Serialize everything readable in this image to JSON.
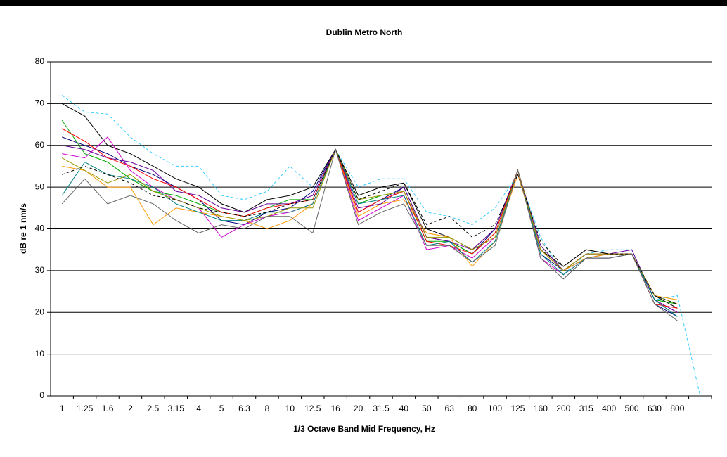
{
  "chart_data": {
    "type": "line",
    "title": "Dublin Metro North",
    "x_label": "1/3 Octave Band Mid Frequency, Hz",
    "y_label": "dB re 1 nm/s",
    "categories": [
      "1",
      "1.25",
      "1.6",
      "2",
      "2.5",
      "3.15",
      "4",
      "5",
      "6.3",
      "8",
      "10",
      "12.5",
      "16",
      "20",
      "31.5",
      "40",
      "50",
      "63",
      "80",
      "100",
      "125",
      "160",
      "200",
      "315",
      "400",
      "500",
      "630",
      "800",
      null
    ],
    "ylim": [
      0,
      80
    ],
    "yticks": [
      0,
      10,
      20,
      30,
      40,
      50,
      60,
      70,
      80
    ],
    "grid": true,
    "series": [
      {
        "color": "#33ccff",
        "dashed": true,
        "values": [
          72,
          68,
          67.5,
          62,
          58,
          55,
          55,
          48,
          47,
          49,
          55,
          50,
          59,
          50,
          52,
          52,
          44,
          43,
          41,
          45,
          53,
          38,
          29,
          34,
          35,
          35,
          23,
          24,
          0
        ]
      },
      {
        "color": "#000000",
        "values": [
          70,
          67,
          60,
          58,
          55,
          52,
          50,
          46,
          44,
          47,
          48,
          50,
          59,
          48,
          50,
          51,
          40,
          38,
          35,
          40,
          54,
          35,
          31,
          35,
          34,
          34,
          24,
          21,
          null
        ]
      },
      {
        "color": "#000080",
        "values": [
          62,
          60,
          58,
          55,
          53,
          50,
          47,
          42,
          41,
          44,
          45,
          49,
          59,
          44,
          47,
          50,
          38,
          37,
          34,
          40,
          54,
          34,
          30,
          33,
          34,
          34,
          22,
          19,
          null
        ]
      },
      {
        "color": "#cc00cc",
        "values": [
          58,
          57,
          62,
          54,
          50,
          47,
          45,
          38,
          41,
          43,
          44,
          46,
          59,
          42,
          45,
          48,
          35,
          36,
          33,
          38,
          54,
          33,
          29,
          33,
          33,
          34,
          23,
          20,
          null
        ]
      },
      {
        "color": "#00aa00",
        "values": [
          66,
          58,
          56,
          52,
          49,
          48,
          46,
          44,
          43,
          45,
          47,
          47,
          59,
          46,
          48,
          49,
          37,
          37,
          34,
          39,
          54,
          36,
          30,
          34,
          34,
          34,
          23,
          22,
          null
        ]
      },
      {
        "color": "#ff9900",
        "values": [
          55,
          54,
          50,
          50,
          41,
          45,
          44,
          43,
          42,
          40,
          42,
          46,
          59,
          43,
          46,
          47,
          39,
          38,
          31,
          37,
          53,
          35,
          30,
          33,
          34,
          34,
          24,
          23,
          null
        ]
      },
      {
        "color": "#660099",
        "values": [
          60,
          59,
          57,
          56,
          54,
          49,
          48,
          45,
          44,
          46,
          46,
          48,
          59,
          45,
          46,
          50,
          38,
          37,
          35,
          40,
          54,
          36,
          30,
          34,
          34,
          35,
          23,
          20,
          null
        ]
      },
      {
        "color": "#ff0000",
        "values": [
          64,
          61,
          57,
          55,
          52,
          50,
          47,
          44,
          43,
          45,
          46,
          47,
          59,
          44,
          47,
          49,
          37,
          36,
          34,
          39,
          54,
          35,
          30,
          34,
          34,
          34,
          22,
          21,
          null
        ]
      },
      {
        "color": "#008080",
        "values": [
          48,
          56,
          53,
          52,
          50,
          46,
          44,
          42,
          42,
          44,
          44,
          46,
          59,
          46,
          47,
          48,
          36,
          37,
          32,
          37,
          54,
          34,
          29,
          33,
          33,
          34,
          23,
          19,
          null
        ]
      },
      {
        "color": "#999900",
        "values": [
          57,
          54,
          51,
          53,
          49,
          47,
          45,
          43,
          42,
          43,
          45,
          45,
          59,
          47,
          48,
          49,
          38,
          38,
          35,
          38,
          54,
          35,
          30,
          34,
          34,
          34,
          24,
          22,
          null
        ]
      },
      {
        "color": "#000000",
        "dashed": true,
        "values": [
          53,
          55,
          53,
          51,
          48,
          47,
          45,
          44,
          43,
          44,
          46,
          47,
          59,
          47,
          49,
          51,
          41,
          43,
          38,
          41,
          53,
          37,
          31,
          35,
          34,
          34,
          24,
          22,
          null
        ]
      },
      {
        "color": "#666666",
        "values": [
          46,
          52,
          46,
          48,
          46,
          42,
          39,
          41,
          40,
          43,
          43,
          39,
          59,
          41,
          44,
          46,
          36,
          36,
          32,
          36,
          54,
          33,
          28,
          33,
          33,
          34,
          22,
          18,
          null
        ]
      }
    ]
  }
}
